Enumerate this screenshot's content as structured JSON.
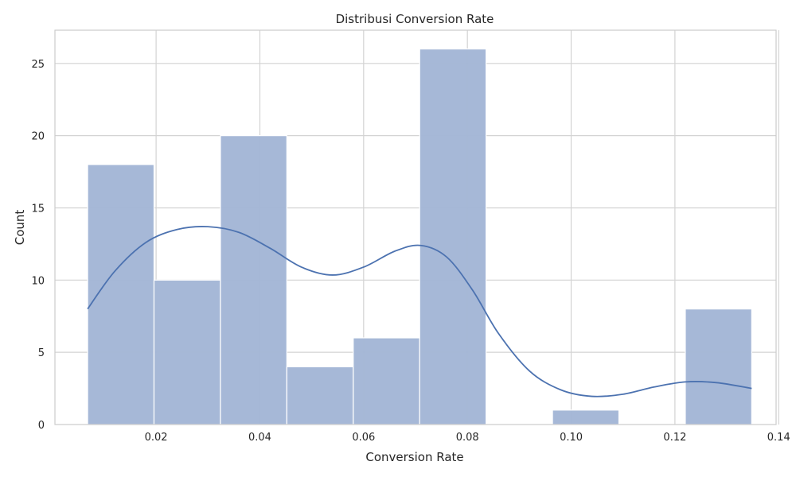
{
  "chart_data": {
    "type": "bar",
    "title": "Distribusi Conversion Rate",
    "xlabel": "Conversion Rate",
    "ylabel": "Count",
    "xlim": [
      0.0005,
      0.1395
    ],
    "ylim": [
      0,
      27.3
    ],
    "xticks": [
      0.02,
      0.04,
      0.06,
      0.08,
      0.1,
      0.12,
      0.14
    ],
    "xtick_labels": [
      "0.02",
      "0.04",
      "0.06",
      "0.08",
      "0.10",
      "0.12",
      "0.14"
    ],
    "yticks": [
      0,
      5,
      10,
      15,
      20,
      25
    ],
    "ytick_labels": [
      "0",
      "5",
      "10",
      "15",
      "20",
      "25"
    ],
    "bins": [
      {
        "x0": 0.0068,
        "x1": 0.0196,
        "value": 18
      },
      {
        "x0": 0.0196,
        "x1": 0.0324,
        "value": 10
      },
      {
        "x0": 0.0324,
        "x1": 0.0452,
        "value": 20
      },
      {
        "x0": 0.0452,
        "x1": 0.058,
        "value": 4
      },
      {
        "x0": 0.058,
        "x1": 0.0708,
        "value": 6
      },
      {
        "x0": 0.0708,
        "x1": 0.0836,
        "value": 26
      },
      {
        "x0": 0.0836,
        "x1": 0.0964,
        "value": 0
      },
      {
        "x0": 0.0964,
        "x1": 0.1092,
        "value": 1
      },
      {
        "x0": 0.1092,
        "x1": 0.122,
        "value": 0
      },
      {
        "x0": 0.122,
        "x1": 0.1348,
        "value": 8
      }
    ],
    "kde": {
      "x": [
        0.0068,
        0.012,
        0.018,
        0.024,
        0.03,
        0.036,
        0.042,
        0.048,
        0.054,
        0.06,
        0.066,
        0.071,
        0.076,
        0.081,
        0.086,
        0.092,
        0.098,
        0.104,
        0.11,
        0.116,
        0.122,
        0.128,
        0.1348
      ],
      "y": [
        8.0,
        10.6,
        12.6,
        13.5,
        13.7,
        13.3,
        12.2,
        10.9,
        10.35,
        10.9,
        12.0,
        12.4,
        11.6,
        9.3,
        6.3,
        3.7,
        2.4,
        1.95,
        2.1,
        2.6,
        2.95,
        2.9,
        2.5
      ]
    },
    "grid": true,
    "colors": {
      "bar_fill": "#a3b6d6",
      "bar_edge": "#ffffff",
      "kde_line": "#4c72b0",
      "grid": "#d3d3d3",
      "spine": "#cccccc"
    }
  }
}
